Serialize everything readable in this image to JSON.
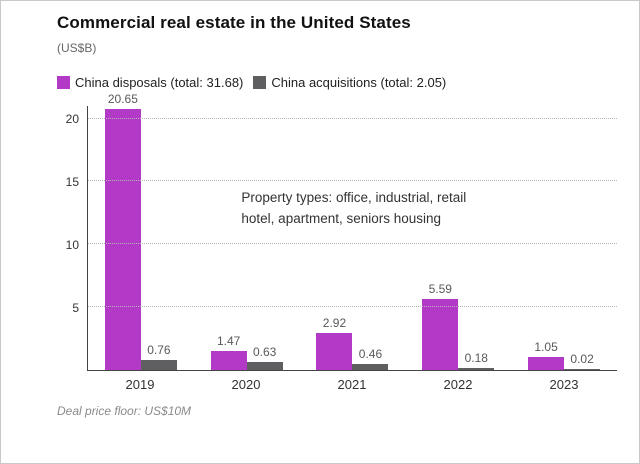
{
  "header": {
    "title": "Commercial real estate in the United States",
    "subtitle": "(US$B)"
  },
  "legend": {
    "items": [
      {
        "label": "China disposals (total: 31.68)",
        "color": "#b23ac6"
      },
      {
        "label": "China acquisitions (total: 2.05)",
        "color": "#5f5f61"
      }
    ]
  },
  "chart_data": {
    "type": "bar",
    "title": "Commercial real estate in the United States",
    "ylabel": "US$B",
    "categories": [
      "2019",
      "2020",
      "2021",
      "2022",
      "2023"
    ],
    "series": [
      {
        "name": "China disposals",
        "color": "#b23ac6",
        "values": [
          20.65,
          1.47,
          2.92,
          5.59,
          1.05
        ]
      },
      {
        "name": "China acquisitions",
        "color": "#5f5f61",
        "values": [
          0.76,
          0.63,
          0.46,
          0.18,
          0.02
        ]
      }
    ],
    "ylim": [
      0,
      21
    ],
    "yticks": [
      5,
      10,
      15,
      20
    ],
    "grid": "horizontal-dotted",
    "legend_position": "top",
    "annotation_line1": "Property types: office, industrial, retail",
    "annotation_line2": "hotel, apartment, seniors housing"
  },
  "footer": {
    "note": "Deal price floor: US$10M"
  }
}
